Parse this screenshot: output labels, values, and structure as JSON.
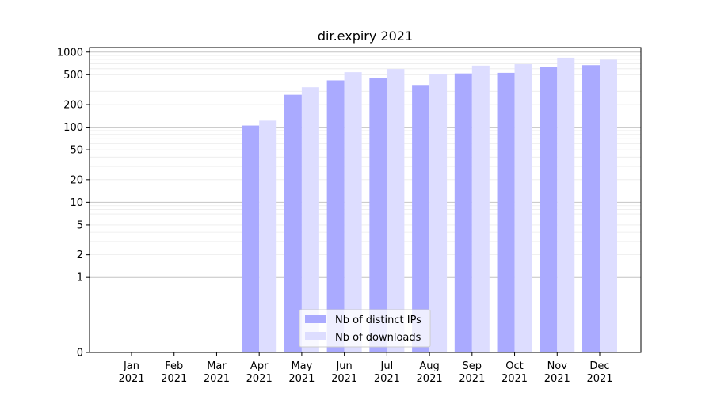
{
  "chart_data": {
    "type": "bar",
    "title": "dir.expiry 2021",
    "xlabel": "",
    "ylabel": "",
    "yscale": "symlog",
    "ylim": [
      0,
      1150
    ],
    "yticks": [
      0,
      1,
      2,
      5,
      10,
      20,
      50,
      100,
      200,
      500,
      1000
    ],
    "major_gridlines": [
      1,
      10,
      100,
      1000
    ],
    "grid": "horizontal",
    "legend_position": "bottom-center",
    "categories": [
      {
        "month": "Jan",
        "year": "2021"
      },
      {
        "month": "Feb",
        "year": "2021"
      },
      {
        "month": "Mar",
        "year": "2021"
      },
      {
        "month": "Apr",
        "year": "2021"
      },
      {
        "month": "May",
        "year": "2021"
      },
      {
        "month": "Jun",
        "year": "2021"
      },
      {
        "month": "Jul",
        "year": "2021"
      },
      {
        "month": "Aug",
        "year": "2021"
      },
      {
        "month": "Sep",
        "year": "2021"
      },
      {
        "month": "Oct",
        "year": "2021"
      },
      {
        "month": "Nov",
        "year": "2021"
      },
      {
        "month": "Dec",
        "year": "2021"
      }
    ],
    "series": [
      {
        "name": "Nb of distinct IPs",
        "color": "#aaaaff",
        "values": [
          0,
          0,
          0,
          105,
          270,
          420,
          450,
          365,
          520,
          530,
          640,
          670
        ]
      },
      {
        "name": "Nb of downloads",
        "color": "#ddddff",
        "values": [
          0,
          0,
          0,
          122,
          340,
          540,
          595,
          510,
          660,
          690,
          840,
          790
        ]
      }
    ]
  }
}
